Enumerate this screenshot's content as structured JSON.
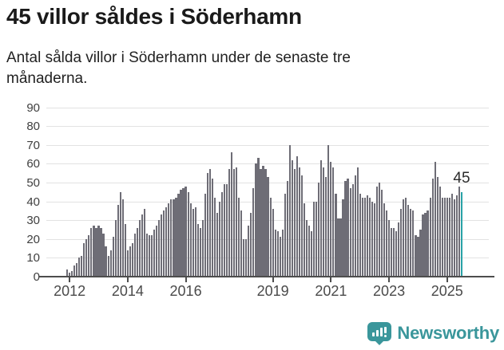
{
  "header": {
    "title": "45 villor såldes i Söderhamn",
    "subtitle": "Antal sålda villor i Söderhamn under de senaste tre månaderna."
  },
  "annotation": {
    "last_value_label": "45"
  },
  "brand": {
    "name": "Newsworthy"
  },
  "colors": {
    "bar": "#6e6d76",
    "highlight": "#29a2a7",
    "grid": "#e2e2e2",
    "axis": "#4d4d4d",
    "brand": "#3a969b",
    "title_text": "#1a1a1a",
    "background": "#ffffff"
  },
  "chart_data": {
    "type": "bar",
    "title": "45 villor såldes i Söderhamn",
    "subtitle": "Antal sålda villor i Söderhamn under de senaste tre månaderna.",
    "x_start": "2011-12",
    "frequency": "monthly",
    "grid": "horizontal",
    "legend": "none",
    "ylim": [
      0,
      90
    ],
    "y_ticks": [
      0,
      10,
      20,
      30,
      40,
      50,
      60,
      70,
      80,
      90
    ],
    "x_tick_years": [
      2012,
      2014,
      2016,
      2019,
      2021,
      2023,
      2025
    ],
    "values": [
      4,
      2,
      3,
      6,
      7,
      10,
      11,
      18,
      20,
      22,
      26,
      27,
      26,
      27,
      26,
      23,
      16,
      11,
      14,
      21,
      30,
      38,
      45,
      41,
      28,
      14,
      16,
      18,
      23,
      26,
      30,
      33,
      36,
      23,
      22,
      22,
      25,
      27,
      30,
      33,
      35,
      37,
      39,
      41,
      41,
      42,
      44,
      46,
      47,
      48,
      45,
      39,
      36,
      37,
      28,
      26,
      30,
      44,
      55,
      57,
      52,
      42,
      34,
      40,
      45,
      49,
      49,
      57,
      66,
      57,
      58,
      42,
      35,
      20,
      20,
      27,
      34,
      47,
      60,
      63,
      57,
      59,
      57,
      53,
      42,
      36,
      25,
      24,
      21,
      25,
      44,
      51,
      70,
      62,
      57,
      64,
      58,
      54,
      39,
      30,
      27,
      24,
      40,
      40,
      50,
      62,
      58,
      53,
      70,
      61,
      58,
      44,
      31,
      31,
      41,
      51,
      52,
      47,
      49,
      54,
      58,
      44,
      42,
      42,
      43,
      42,
      40,
      39,
      48,
      50,
      46,
      39,
      35,
      30,
      26,
      26,
      24,
      29,
      36,
      41,
      42,
      38,
      36,
      35,
      22,
      21,
      25,
      33,
      34,
      35,
      42,
      52,
      61,
      53,
      48,
      42,
      42,
      42,
      42,
      44,
      41,
      43,
      48,
      45
    ],
    "highlight_index": 163,
    "highlight_value": 45
  }
}
